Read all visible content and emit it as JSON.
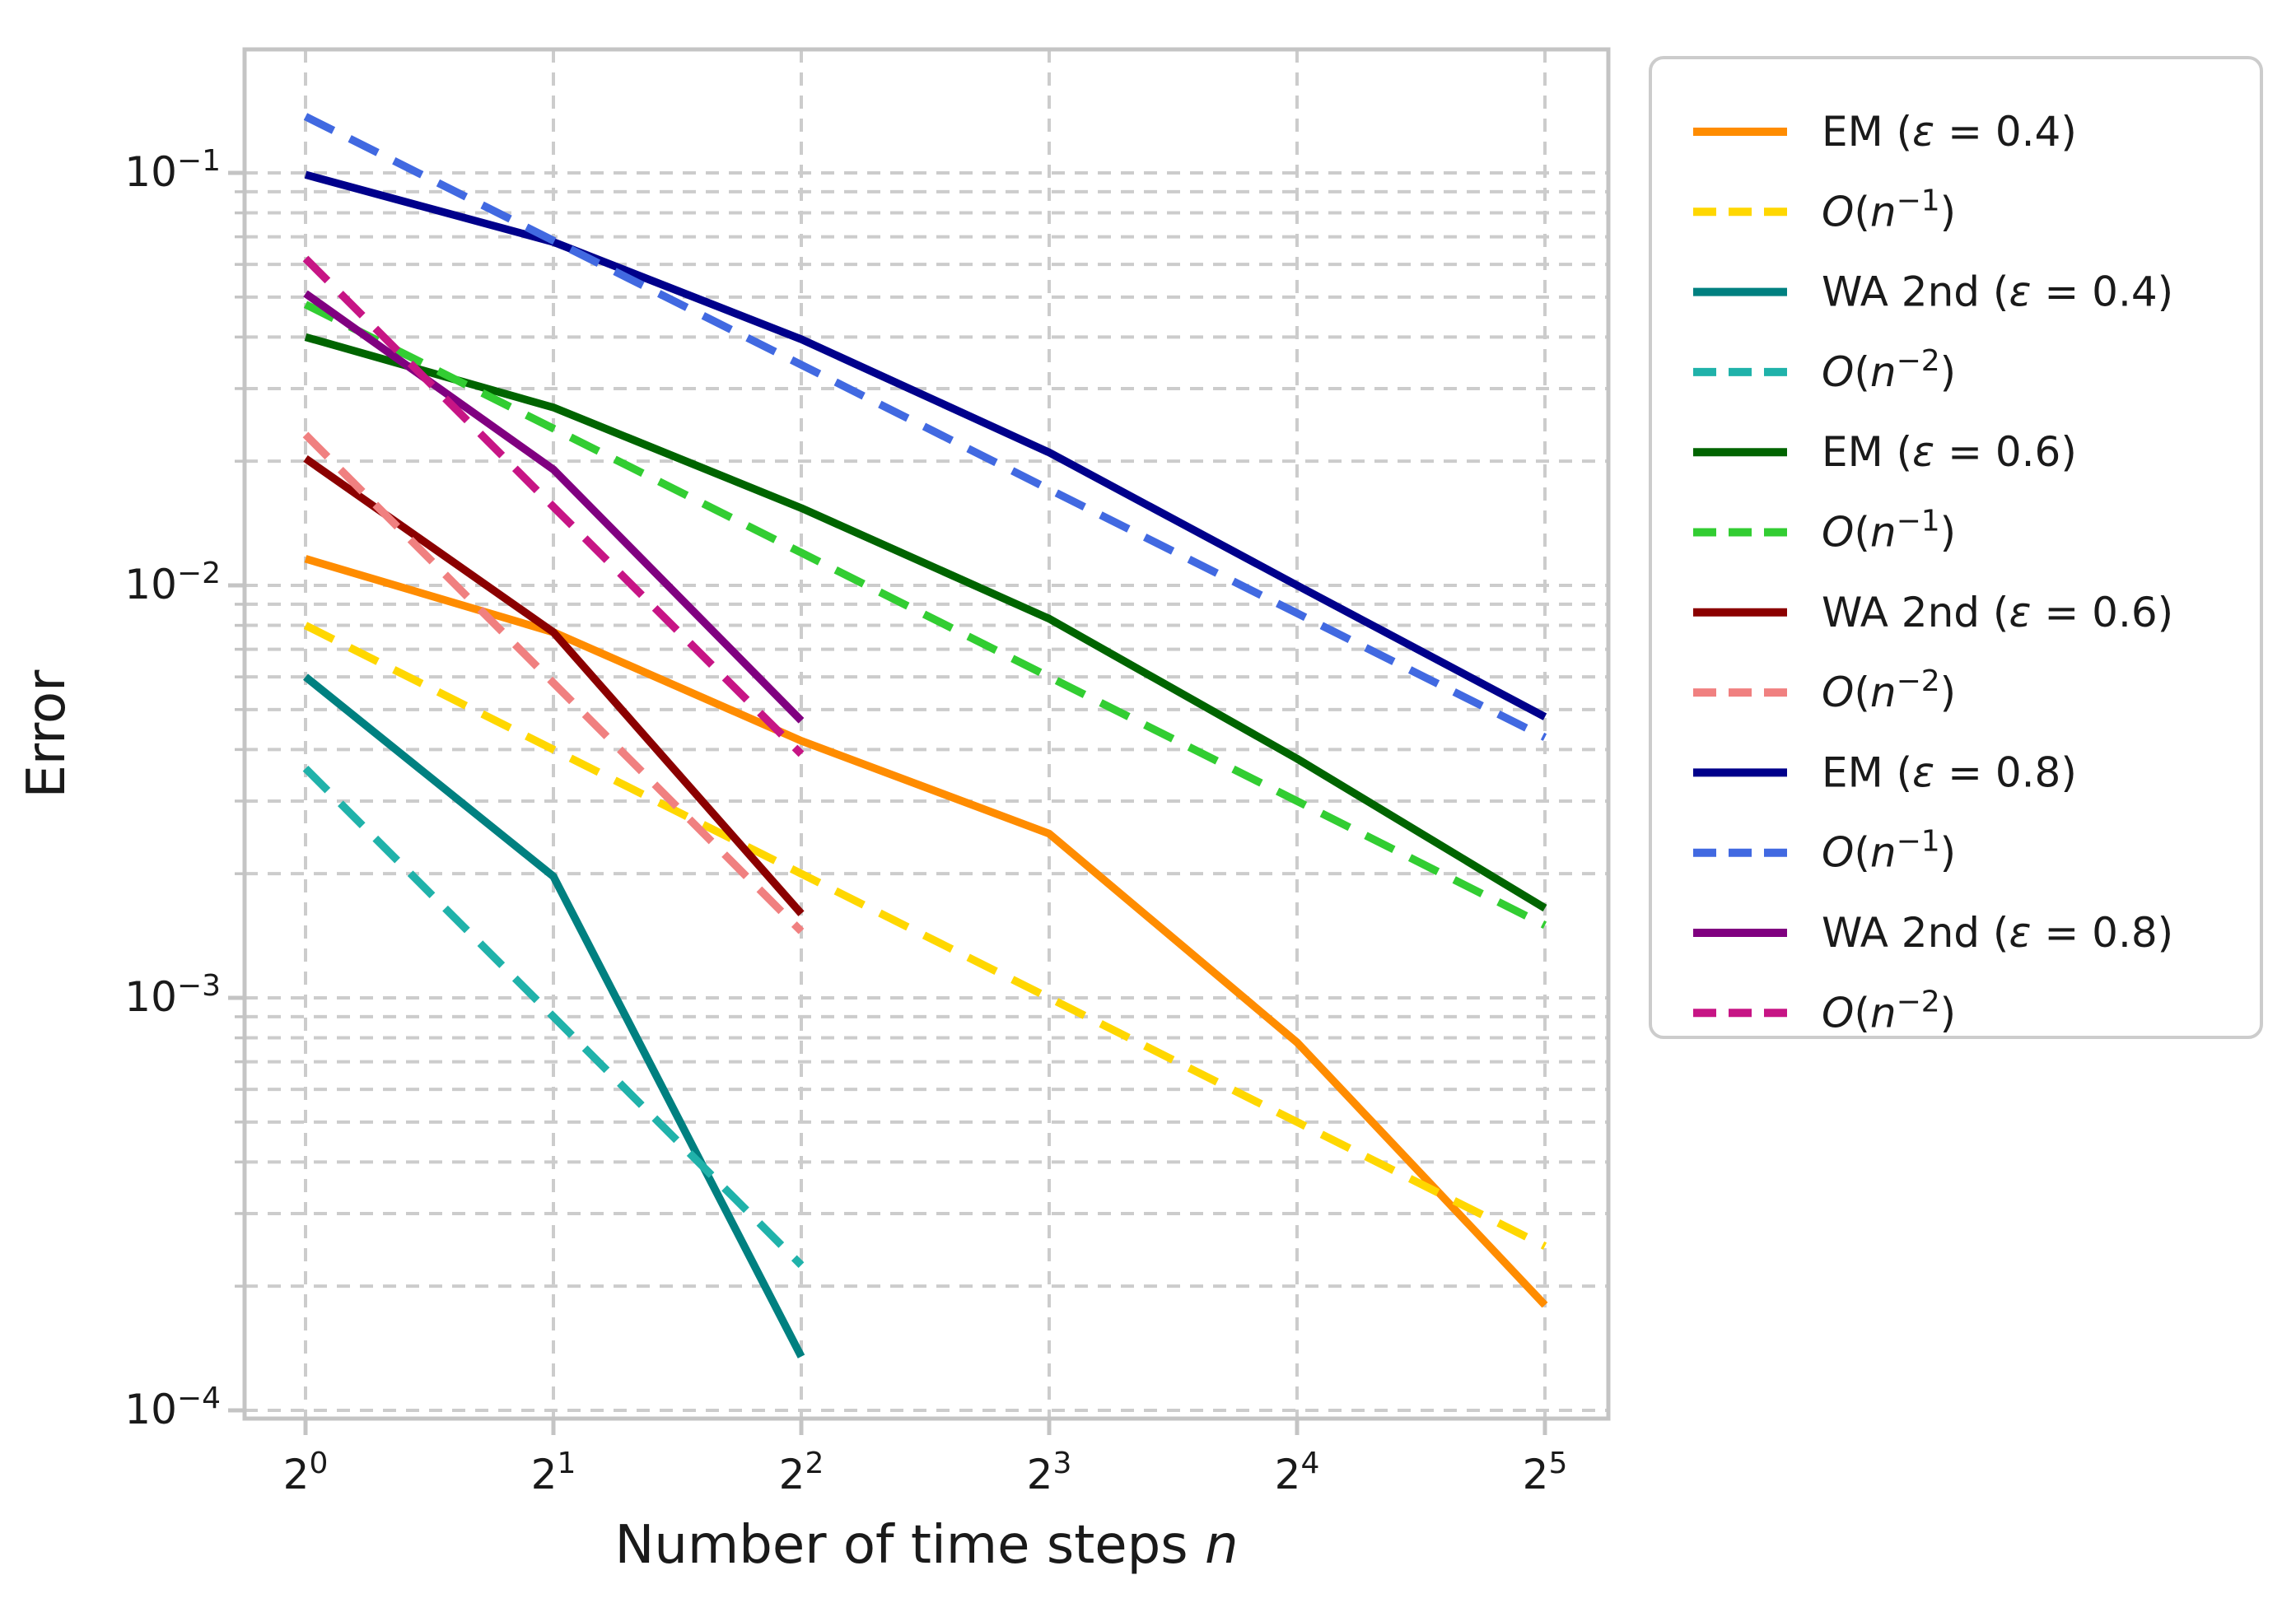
{
  "figure": {
    "xlabel_parts": [
      {
        "t": "Number of time steps "
      },
      {
        "t": "n",
        "i": true
      }
    ],
    "ylabel": "Error",
    "background": "#ffffff",
    "grid_color": "#cccccc",
    "spine_color": "#c4c4c4",
    "text_color": "#1a1a1a"
  },
  "chart_data": {
    "type": "line",
    "xscale": "log2",
    "yscale": "log10",
    "xlabel": "Number of time steps n",
    "ylabel": "Error",
    "xlim_log2": [
      -0.246,
      5.256
    ],
    "ylim": [
      9.55e-05,
      0.199
    ],
    "grid": "both-dashed",
    "legend_position": "outside-right-top",
    "x_ticks": [
      {
        "base": "2",
        "exp": "0",
        "n": 1
      },
      {
        "base": "2",
        "exp": "1",
        "n": 2
      },
      {
        "base": "2",
        "exp": "2",
        "n": 4
      },
      {
        "base": "2",
        "exp": "3",
        "n": 8
      },
      {
        "base": "2",
        "exp": "4",
        "n": 16
      },
      {
        "base": "2",
        "exp": "5",
        "n": 32
      }
    ],
    "y_ticks": [
      {
        "base": "10",
        "exp": "−1",
        "value": 0.1
      },
      {
        "base": "10",
        "exp": "−2",
        "value": 0.01
      },
      {
        "base": "10",
        "exp": "−3",
        "value": 0.001
      },
      {
        "base": "10",
        "exp": "−4",
        "value": 0.0001
      }
    ],
    "series": [
      {
        "id": "em-eps-0.4",
        "label": "EM (ε = 0.4)",
        "label_parts": [
          {
            "t": "EM ("
          },
          {
            "t": "ε",
            "i": true
          },
          {
            "t": " = 0.4)"
          }
        ],
        "color": "#FF8C00",
        "style": "solid",
        "n": [
          1,
          2,
          4,
          8,
          16,
          32
        ],
        "error": [
          0.0116,
          0.0077,
          0.0042,
          0.0025,
          0.00078,
          0.00018
        ]
      },
      {
        "id": "order-n-1-eps-0.4",
        "label": "O(n⁻¹)",
        "label_parts": [
          {
            "t": "O",
            "i": true
          },
          {
            "t": "("
          },
          {
            "t": "n",
            "i": true
          },
          {
            "t": "−1",
            "sup": true
          },
          {
            "t": ")"
          }
        ],
        "color": "#FFD700",
        "style": "dashed",
        "n": [
          1,
          2,
          4,
          8,
          16,
          32
        ],
        "error": [
          0.008,
          0.004,
          0.002,
          0.001,
          0.0005,
          0.00025
        ]
      },
      {
        "id": "wa2nd-eps-0.4",
        "label": "WA 2nd (ε = 0.4)",
        "label_parts": [
          {
            "t": "WA 2nd ("
          },
          {
            "t": "ε",
            "i": true
          },
          {
            "t": " = 0.4)"
          }
        ],
        "color": "#008080",
        "style": "solid",
        "n": [
          1,
          2,
          4
        ],
        "error": [
          0.006,
          0.00197,
          0.000135
        ]
      },
      {
        "id": "order-n-2-eps-0.4",
        "label": "O(n⁻²)",
        "label_parts": [
          {
            "t": "O",
            "i": true
          },
          {
            "t": "("
          },
          {
            "t": "n",
            "i": true
          },
          {
            "t": "−2",
            "sup": true
          },
          {
            "t": ")"
          }
        ],
        "color": "#20B2AA",
        "style": "dashed",
        "n": [
          1,
          2,
          4
        ],
        "error": [
          0.0036,
          0.0009,
          0.000225
        ]
      },
      {
        "id": "em-eps-0.6",
        "label": "EM (ε = 0.6)",
        "label_parts": [
          {
            "t": "EM ("
          },
          {
            "t": "ε",
            "i": true
          },
          {
            "t": " = 0.6)"
          }
        ],
        "color": "#006400",
        "style": "solid",
        "n": [
          1,
          2,
          4,
          8,
          16,
          32
        ],
        "error": [
          0.04,
          0.027,
          0.0154,
          0.0083,
          0.0038,
          0.00165
        ]
      },
      {
        "id": "order-n-1-eps-0.6",
        "label": "O(n⁻¹)",
        "label_parts": [
          {
            "t": "O",
            "i": true
          },
          {
            "t": "("
          },
          {
            "t": "n",
            "i": true
          },
          {
            "t": "−1",
            "sup": true
          },
          {
            "t": ")"
          }
        ],
        "color": "#32CD32",
        "style": "dashed",
        "n": [
          1,
          2,
          4,
          8,
          16,
          32
        ],
        "error": [
          0.048,
          0.024,
          0.012,
          0.006,
          0.003,
          0.0015
        ]
      },
      {
        "id": "wa2nd-eps-0.6",
        "label": "WA 2nd (ε = 0.6)",
        "label_parts": [
          {
            "t": "WA 2nd ("
          },
          {
            "t": "ε",
            "i": true
          },
          {
            "t": " = 0.6)"
          }
        ],
        "color": "#8B0000",
        "style": "solid",
        "n": [
          1,
          2,
          4
        ],
        "error": [
          0.0203,
          0.0077,
          0.0016
        ]
      },
      {
        "id": "order-n-2-eps-0.6",
        "label": "O(n⁻²)",
        "label_parts": [
          {
            "t": "O",
            "i": true
          },
          {
            "t": "("
          },
          {
            "t": "n",
            "i": true
          },
          {
            "t": "−2",
            "sup": true
          },
          {
            "t": ")"
          }
        ],
        "color": "#F08080",
        "style": "dashed",
        "n": [
          1,
          2,
          4
        ],
        "error": [
          0.0232,
          0.0058,
          0.00145
        ]
      },
      {
        "id": "em-eps-0.8",
        "label": "EM (ε = 0.8)",
        "label_parts": [
          {
            "t": "EM ("
          },
          {
            "t": "ε",
            "i": true
          },
          {
            "t": " = 0.8)"
          }
        ],
        "color": "#00008B",
        "style": "solid",
        "n": [
          1,
          2,
          4,
          8,
          16,
          32
        ],
        "error": [
          0.099,
          0.068,
          0.0395,
          0.021,
          0.01,
          0.0048
        ]
      },
      {
        "id": "order-n-1-eps-0.8",
        "label": "O(n⁻¹)",
        "label_parts": [
          {
            "t": "O",
            "i": true
          },
          {
            "t": "("
          },
          {
            "t": "n",
            "i": true
          },
          {
            "t": "−1",
            "sup": true
          },
          {
            "t": ")"
          }
        ],
        "color": "#4169E1",
        "style": "dashed",
        "n": [
          1,
          2,
          4,
          8,
          16,
          32
        ],
        "error": [
          0.137,
          0.0685,
          0.03425,
          0.0171,
          0.00856,
          0.00428
        ]
      },
      {
        "id": "wa2nd-eps-0.8",
        "label": "WA 2nd (ε = 0.8)",
        "label_parts": [
          {
            "t": "WA 2nd ("
          },
          {
            "t": "ε",
            "i": true
          },
          {
            "t": " = 0.8)"
          }
        ],
        "color": "#800080",
        "style": "solid",
        "n": [
          1,
          2,
          4
        ],
        "error": [
          0.051,
          0.0191,
          0.0047
        ]
      },
      {
        "id": "order-n-2-eps-0.8",
        "label": "O(n⁻²)",
        "label_parts": [
          {
            "t": "O",
            "i": true
          },
          {
            "t": "("
          },
          {
            "t": "n",
            "i": true
          },
          {
            "t": "−2",
            "sup": true
          },
          {
            "t": ")"
          }
        ],
        "color": "#C71585",
        "style": "dashed",
        "n": [
          1,
          2,
          4
        ],
        "error": [
          0.062,
          0.0155,
          0.0039
        ]
      }
    ]
  }
}
